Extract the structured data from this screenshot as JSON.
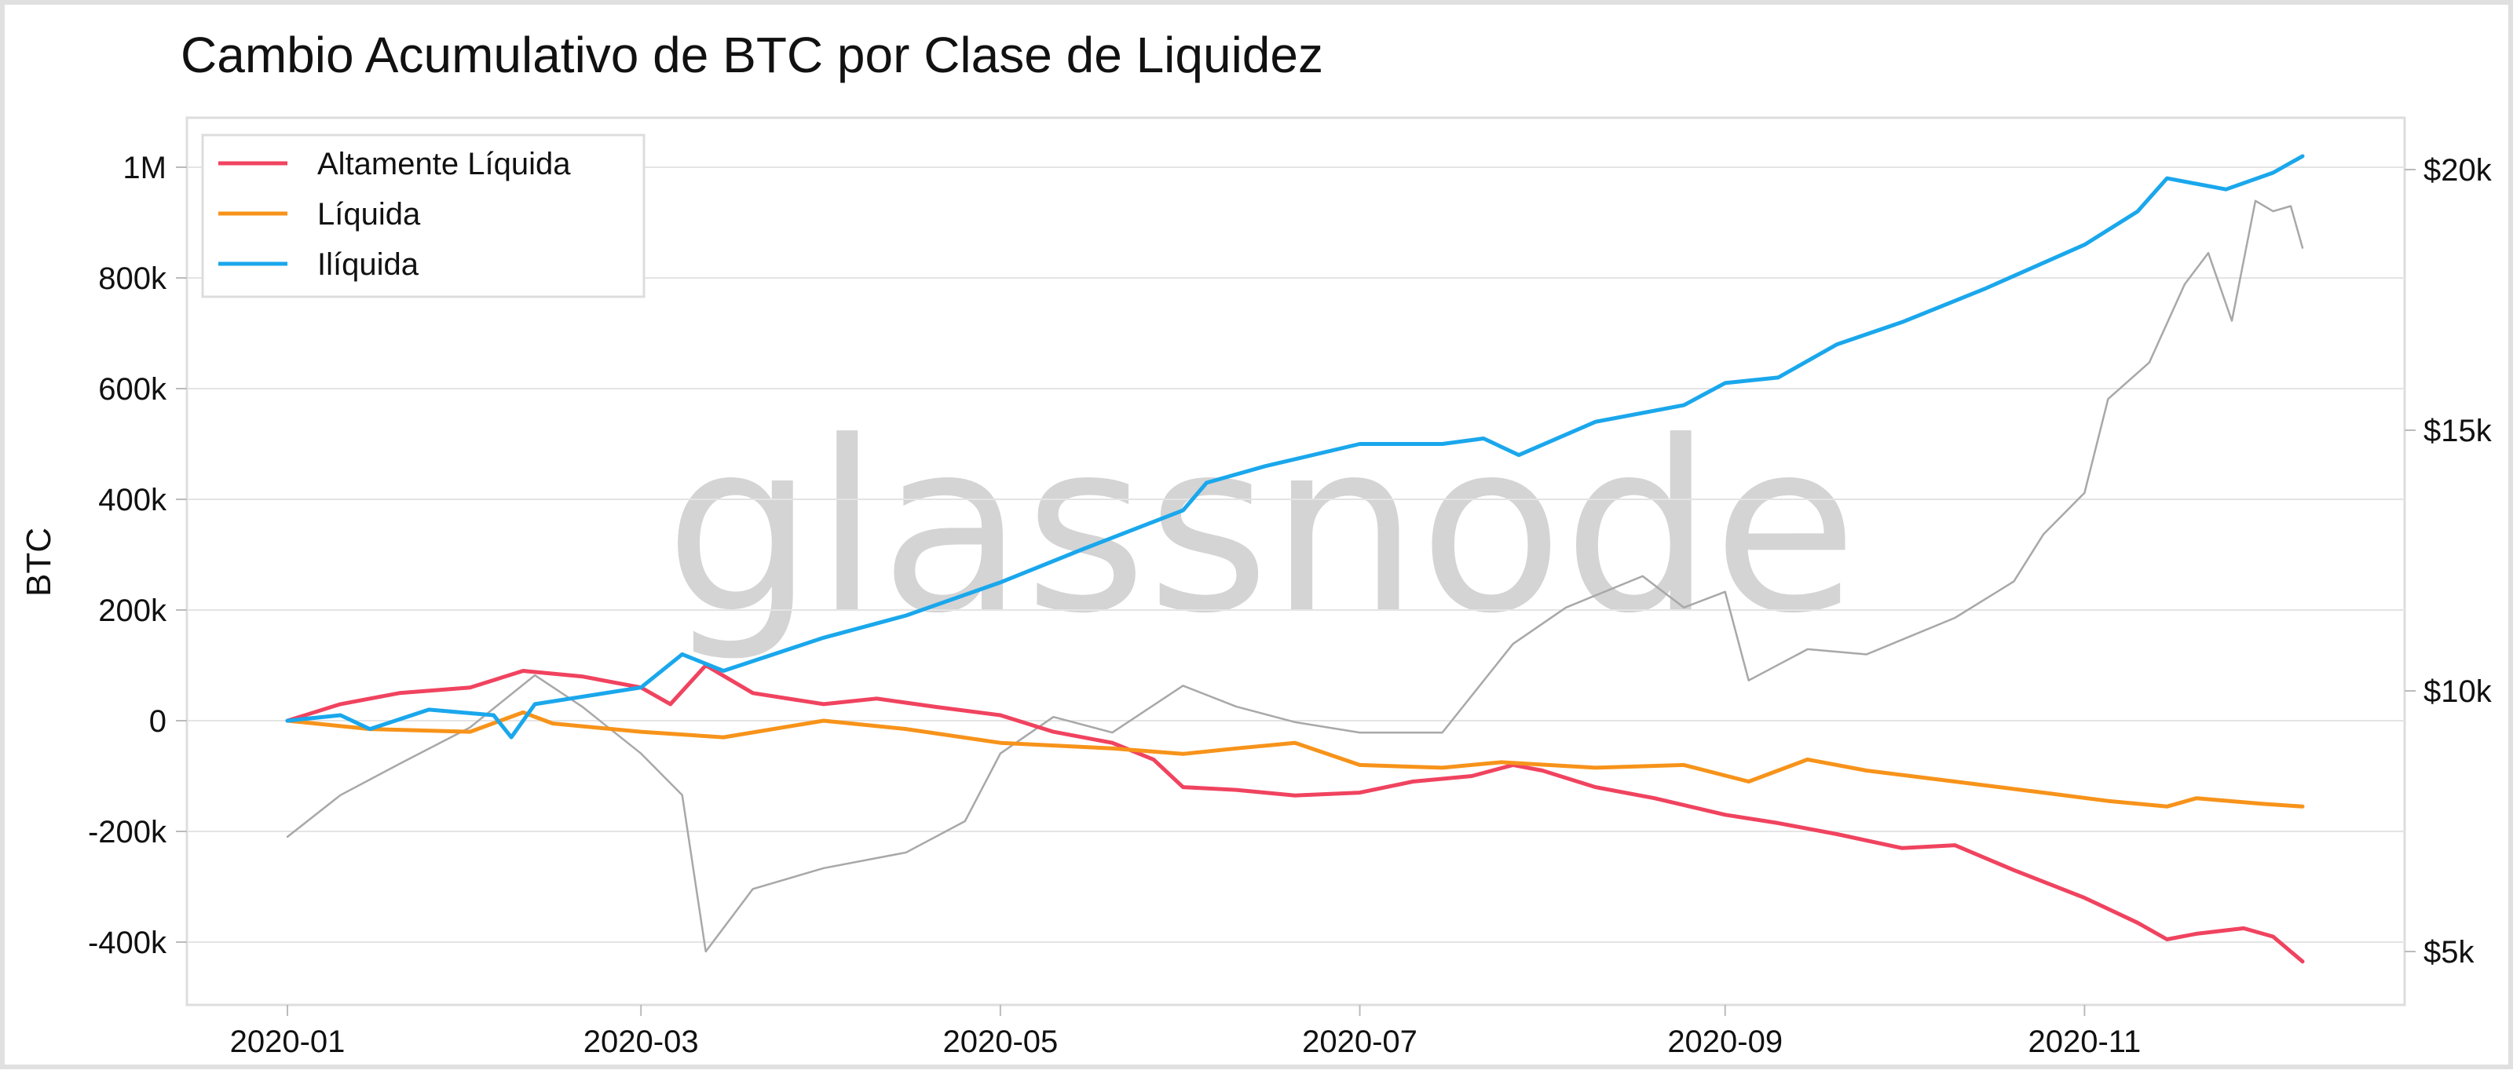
{
  "chart_data": {
    "type": "line",
    "title": "Cambio Acumulativo de BTC por Clase de Liquidez",
    "ylabel": "BTC",
    "watermark": "glassnode",
    "x_ticks": [
      "2020-01",
      "2020-03",
      "2020-05",
      "2020-07",
      "2020-09",
      "2020-11"
    ],
    "y_ticks": [
      "1M",
      "800k",
      "600k",
      "400k",
      "200k",
      "0",
      "-200k",
      "-400k"
    ],
    "y_right_ticks": [
      "$20k",
      "$15k",
      "$10k",
      "$5k"
    ],
    "ylim": [
      -500000,
      1000000
    ],
    "y_right_lim": [
      4500,
      20000
    ],
    "grid": true,
    "legend_position": "top-left",
    "series": [
      {
        "name": "Altamente Líquida",
        "color": "#f0435f",
        "axis": "left",
        "points": [
          [
            "2020-01-01",
            0
          ],
          [
            "2020-01-10",
            30000
          ],
          [
            "2020-01-20",
            50000
          ],
          [
            "2020-02-01",
            60000
          ],
          [
            "2020-02-10",
            90000
          ],
          [
            "2020-02-20",
            80000
          ],
          [
            "2020-03-01",
            60000
          ],
          [
            "2020-03-06",
            30000
          ],
          [
            "2020-03-12",
            100000
          ],
          [
            "2020-03-20",
            50000
          ],
          [
            "2020-04-01",
            30000
          ],
          [
            "2020-04-10",
            40000
          ],
          [
            "2020-04-20",
            25000
          ],
          [
            "2020-05-01",
            10000
          ],
          [
            "2020-05-10",
            -20000
          ],
          [
            "2020-05-20",
            -40000
          ],
          [
            "2020-05-27",
            -70000
          ],
          [
            "2020-06-01",
            -120000
          ],
          [
            "2020-06-10",
            -125000
          ],
          [
            "2020-06-20",
            -135000
          ],
          [
            "2020-07-01",
            -130000
          ],
          [
            "2020-07-10",
            -110000
          ],
          [
            "2020-07-20",
            -100000
          ],
          [
            "2020-07-27",
            -80000
          ],
          [
            "2020-08-01",
            -90000
          ],
          [
            "2020-08-10",
            -120000
          ],
          [
            "2020-08-20",
            -140000
          ],
          [
            "2020-09-01",
            -170000
          ],
          [
            "2020-09-10",
            -185000
          ],
          [
            "2020-09-20",
            -205000
          ],
          [
            "2020-10-01",
            -230000
          ],
          [
            "2020-10-10",
            -225000
          ],
          [
            "2020-10-20",
            -270000
          ],
          [
            "2020-11-01",
            -320000
          ],
          [
            "2020-11-10",
            -365000
          ],
          [
            "2020-11-15",
            -395000
          ],
          [
            "2020-11-20",
            -385000
          ],
          [
            "2020-11-28",
            -375000
          ],
          [
            "2020-12-03",
            -390000
          ],
          [
            "2020-12-08",
            -435000
          ]
        ]
      },
      {
        "name": "Líquida",
        "color": "#f7931a",
        "axis": "left",
        "points": [
          [
            "2020-01-01",
            0
          ],
          [
            "2020-01-15",
            -15000
          ],
          [
            "2020-02-01",
            -20000
          ],
          [
            "2020-02-10",
            15000
          ],
          [
            "2020-02-15",
            -5000
          ],
          [
            "2020-03-01",
            -20000
          ],
          [
            "2020-03-15",
            -30000
          ],
          [
            "2020-04-01",
            0
          ],
          [
            "2020-04-15",
            -15000
          ],
          [
            "2020-05-01",
            -40000
          ],
          [
            "2020-05-20",
            -50000
          ],
          [
            "2020-06-01",
            -60000
          ],
          [
            "2020-06-10",
            -50000
          ],
          [
            "2020-06-20",
            -40000
          ],
          [
            "2020-07-01",
            -80000
          ],
          [
            "2020-07-15",
            -85000
          ],
          [
            "2020-07-25",
            -75000
          ],
          [
            "2020-08-10",
            -85000
          ],
          [
            "2020-08-25",
            -80000
          ],
          [
            "2020-09-05",
            -110000
          ],
          [
            "2020-09-15",
            -70000
          ],
          [
            "2020-09-25",
            -90000
          ],
          [
            "2020-10-10",
            -110000
          ],
          [
            "2020-10-25",
            -130000
          ],
          [
            "2020-11-05",
            -145000
          ],
          [
            "2020-11-15",
            -155000
          ],
          [
            "2020-11-20",
            -140000
          ],
          [
            "2020-12-01",
            -150000
          ],
          [
            "2020-12-08",
            -155000
          ]
        ]
      },
      {
        "name": "Ilíquida",
        "color": "#1aa7ec",
        "axis": "left",
        "points": [
          [
            "2020-01-01",
            0
          ],
          [
            "2020-01-10",
            10000
          ],
          [
            "2020-01-15",
            -15000
          ],
          [
            "2020-01-25",
            20000
          ],
          [
            "2020-02-05",
            10000
          ],
          [
            "2020-02-08",
            -30000
          ],
          [
            "2020-02-12",
            30000
          ],
          [
            "2020-03-01",
            60000
          ],
          [
            "2020-03-08",
            120000
          ],
          [
            "2020-03-15",
            90000
          ],
          [
            "2020-04-01",
            150000
          ],
          [
            "2020-04-15",
            190000
          ],
          [
            "2020-05-01",
            250000
          ],
          [
            "2020-05-15",
            310000
          ],
          [
            "2020-06-01",
            380000
          ],
          [
            "2020-06-05",
            430000
          ],
          [
            "2020-06-15",
            460000
          ],
          [
            "2020-07-01",
            500000
          ],
          [
            "2020-07-15",
            500000
          ],
          [
            "2020-07-22",
            510000
          ],
          [
            "2020-07-28",
            480000
          ],
          [
            "2020-08-10",
            540000
          ],
          [
            "2020-08-25",
            570000
          ],
          [
            "2020-09-01",
            610000
          ],
          [
            "2020-09-10",
            620000
          ],
          [
            "2020-09-20",
            680000
          ],
          [
            "2020-10-01",
            720000
          ],
          [
            "2020-10-15",
            780000
          ],
          [
            "2020-11-01",
            860000
          ],
          [
            "2020-11-10",
            920000
          ],
          [
            "2020-11-15",
            980000
          ],
          [
            "2020-11-25",
            960000
          ],
          [
            "2020-12-03",
            990000
          ],
          [
            "2020-12-08",
            1020000
          ]
        ]
      },
      {
        "name": "",
        "color": "#a8a8a8",
        "axis": "right",
        "points": [
          [
            "2020-01-01",
            7200
          ],
          [
            "2020-01-10",
            8000
          ],
          [
            "2020-01-20",
            8600
          ],
          [
            "2020-02-01",
            9300
          ],
          [
            "2020-02-12",
            10300
          ],
          [
            "2020-02-20",
            9700
          ],
          [
            "2020-03-01",
            8800
          ],
          [
            "2020-03-08",
            8000
          ],
          [
            "2020-03-12",
            5000
          ],
          [
            "2020-03-20",
            6200
          ],
          [
            "2020-04-01",
            6600
          ],
          [
            "2020-04-15",
            6900
          ],
          [
            "2020-04-25",
            7500
          ],
          [
            "2020-05-01",
            8800
          ],
          [
            "2020-05-10",
            9500
          ],
          [
            "2020-05-20",
            9200
          ],
          [
            "2020-06-01",
            10100
          ],
          [
            "2020-06-10",
            9700
          ],
          [
            "2020-06-20",
            9400
          ],
          [
            "2020-07-01",
            9200
          ],
          [
            "2020-07-15",
            9200
          ],
          [
            "2020-07-27",
            10900
          ],
          [
            "2020-08-05",
            11600
          ],
          [
            "2020-08-18",
            12200
          ],
          [
            "2020-08-25",
            11600
          ],
          [
            "2020-09-01",
            11900
          ],
          [
            "2020-09-05",
            10200
          ],
          [
            "2020-09-15",
            10800
          ],
          [
            "2020-09-25",
            10700
          ],
          [
            "2020-10-10",
            11400
          ],
          [
            "2020-10-20",
            12100
          ],
          [
            "2020-10-25",
            13000
          ],
          [
            "2020-11-01",
            13800
          ],
          [
            "2020-11-05",
            15600
          ],
          [
            "2020-11-12",
            16300
          ],
          [
            "2020-11-18",
            17800
          ],
          [
            "2020-11-22",
            18400
          ],
          [
            "2020-11-26",
            17100
          ],
          [
            "2020-11-30",
            19400
          ],
          [
            "2020-12-03",
            19200
          ],
          [
            "2020-12-06",
            19300
          ],
          [
            "2020-12-08",
            18500
          ]
        ]
      }
    ]
  }
}
